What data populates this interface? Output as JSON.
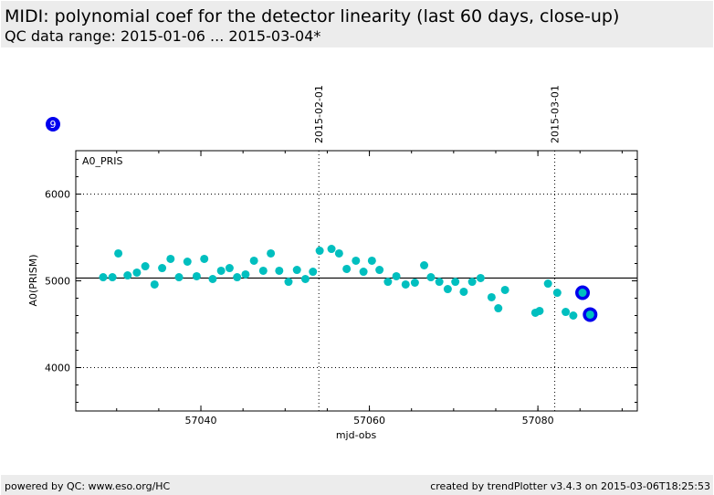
{
  "header": {
    "title": "MIDI: polynomial coef for the detector linearity (last 60 days, close-up)",
    "subtitle": "QC data range: 2015-01-06 ... 2015-03-04*"
  },
  "footer": {
    "left": "powered by QC: www.eso.org/HC",
    "right": "created by trendPlotter v3.4.3 on 2015-03-06T18:25:53"
  },
  "badge": {
    "text": "9",
    "color": "#0000ee"
  },
  "chart_data": {
    "type": "scatter",
    "panel_label": "A0_PRIS",
    "xlabel": "mjd-obs",
    "ylabel": "A0(PRISM)",
    "xlim": [
      57025.15,
      57091.8
    ],
    "ylim": [
      3500,
      6500
    ],
    "xticks": [
      57040,
      57060,
      57080
    ],
    "yticks": [
      4000,
      5000,
      6000
    ],
    "xtick_labels": [
      "57040",
      "57060",
      "57080"
    ],
    "ytick_labels": [
      "4000",
      "5000",
      "6000"
    ],
    "grid_y": [
      4000,
      6000
    ],
    "reference_line": 5032,
    "date_markers": [
      {
        "x": 57054,
        "label": "2015-02-01"
      },
      {
        "x": 57082,
        "label": "2015-03-01"
      }
    ],
    "point_color": "#00bfbf",
    "highlight_color": "#0000ee",
    "x": [
      57028.4,
      57029.5,
      57030.2,
      57031.3,
      57032.4,
      57033.4,
      57034.5,
      57035.4,
      57036.4,
      57037.4,
      57038.4,
      57039.5,
      57040.4,
      57041.4,
      57042.4,
      57043.4,
      57044.3,
      57045.3,
      57046.3,
      57047.4,
      57048.3,
      57049.3,
      57050.4,
      57051.4,
      57052.4,
      57053.3,
      57054.1,
      57055.5,
      57056.4,
      57057.3,
      57058.4,
      57059.3,
      57060.3,
      57061.2,
      57062.2,
      57063.2,
      57064.3,
      57065.4,
      57066.5,
      57067.3,
      57068.3,
      57069.3,
      57070.2,
      57071.2,
      57072.2,
      57073.2,
      57074.5,
      57075.3,
      57076.1,
      57079.7,
      57080.2,
      57081.2,
      57082.3,
      57083.3,
      57084.2,
      57085.3,
      57086.2
    ],
    "y": [
      5042,
      5042,
      5316,
      5063,
      5095,
      5168,
      4958,
      5147,
      5253,
      5042,
      5221,
      5053,
      5253,
      5021,
      5116,
      5147,
      5042,
      5074,
      5232,
      5116,
      5316,
      5116,
      4989,
      5126,
      5021,
      5105,
      5347,
      5368,
      5316,
      5137,
      5232,
      5105,
      5232,
      5126,
      4989,
      5053,
      4958,
      4979,
      5179,
      5042,
      4989,
      4905,
      4989,
      4874,
      4989,
      5032,
      4811,
      4684,
      4895,
      4632,
      4653,
      4968,
      4863,
      4642,
      4600,
      4863,
      4611
    ],
    "highlighted": [
      55,
      56
    ]
  }
}
